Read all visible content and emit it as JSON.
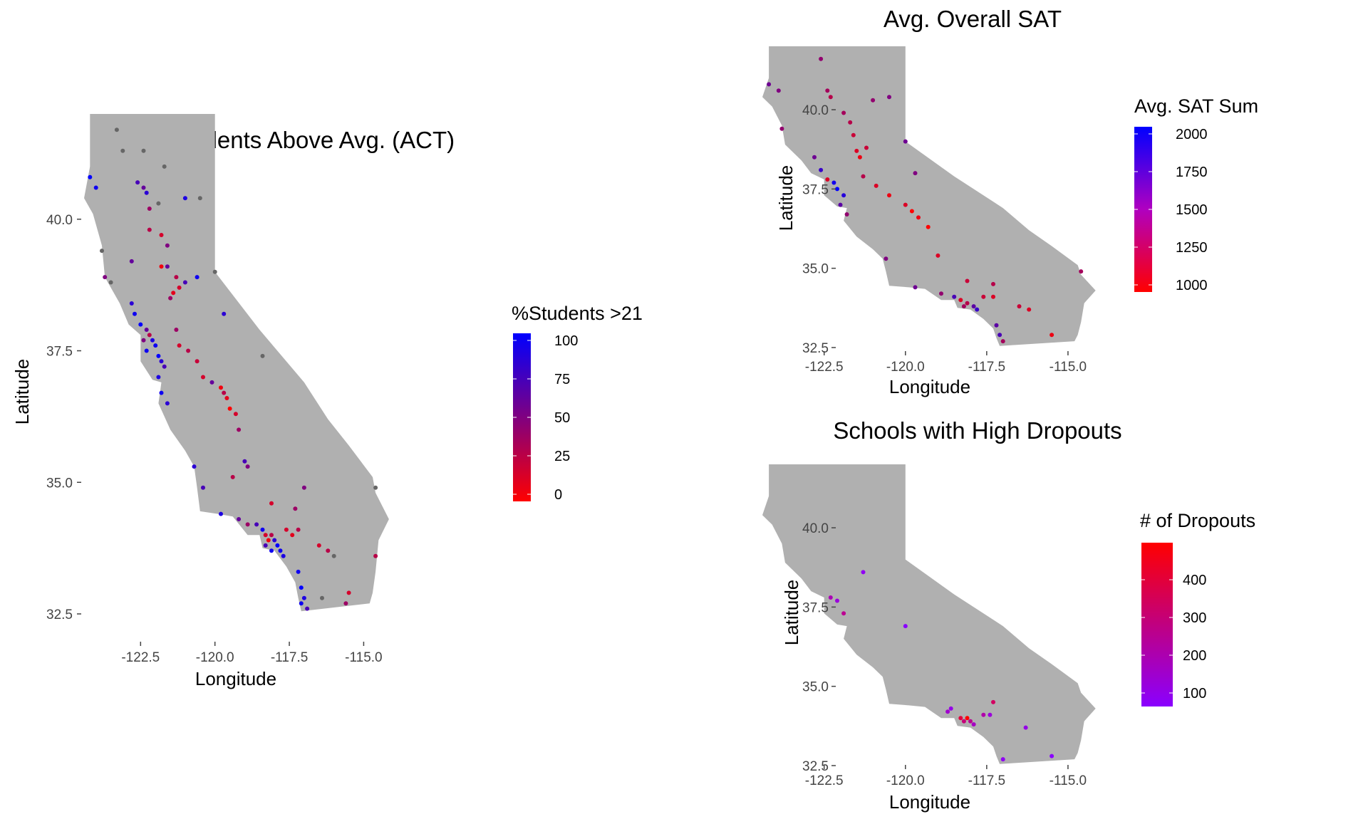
{
  "chart_data": [
    {
      "type": "scatter",
      "title": "% of Students Above Avg. (ACT)",
      "xlabel": "Longitude",
      "ylabel": "Latitude",
      "xlim": [
        -124.4,
        -114.1
      ],
      "ylim": [
        32.5,
        42.0
      ],
      "x_ticks": [
        "-122.5",
        "-120.0",
        "-117.5",
        "-115.0"
      ],
      "y_ticks": [
        "32.5",
        "35.0",
        "37.5",
        "40.0"
      ],
      "legend": {
        "title": "%Students >21",
        "placement": "right",
        "labels": [
          "100",
          "75",
          "50",
          "25",
          "0"
        ],
        "low_color": "#ff0000",
        "high_color": "#0000ff"
      },
      "na_color": "#666666",
      "points": [
        {
          "x": -124.2,
          "y": 40.8,
          "v": 95
        },
        {
          "x": -124.0,
          "y": 40.6,
          "v": 90
        },
        {
          "x": -123.3,
          "y": 41.7,
          "v": null
        },
        {
          "x": -123.1,
          "y": 41.3,
          "v": null
        },
        {
          "x": -122.4,
          "y": 41.3,
          "v": null
        },
        {
          "x": -121.7,
          "y": 41.0,
          "v": null
        },
        {
          "x": -122.6,
          "y": 40.7,
          "v": 70
        },
        {
          "x": -122.4,
          "y": 40.6,
          "v": 60
        },
        {
          "x": -122.3,
          "y": 40.5,
          "v": 80
        },
        {
          "x": -122.2,
          "y": 40.2,
          "v": 40
        },
        {
          "x": -121.9,
          "y": 40.3,
          "v": null
        },
        {
          "x": -121.0,
          "y": 40.4,
          "v": 85
        },
        {
          "x": -122.2,
          "y": 39.8,
          "v": 30
        },
        {
          "x": -121.8,
          "y": 39.7,
          "v": 20
        },
        {
          "x": -121.6,
          "y": 39.5,
          "v": 50
        },
        {
          "x": -121.8,
          "y": 39.1,
          "v": 10
        },
        {
          "x": -121.6,
          "y": 39.1,
          "v": 60
        },
        {
          "x": -121.3,
          "y": 38.9,
          "v": 30
        },
        {
          "x": -121.2,
          "y": 38.7,
          "v": 20
        },
        {
          "x": -121.4,
          "y": 38.6,
          "v": 15
        },
        {
          "x": -121.5,
          "y": 38.5,
          "v": 40
        },
        {
          "x": -121.0,
          "y": 38.8,
          "v": 70
        },
        {
          "x": -120.6,
          "y": 38.9,
          "v": 90
        },
        {
          "x": -123.5,
          "y": 38.8,
          "v": null
        },
        {
          "x": -122.8,
          "y": 38.4,
          "v": 80
        },
        {
          "x": -122.7,
          "y": 38.2,
          "v": 90
        },
        {
          "x": -122.5,
          "y": 38.0,
          "v": 95
        },
        {
          "x": -122.3,
          "y": 37.9,
          "v": 60
        },
        {
          "x": -122.2,
          "y": 37.8,
          "v": 30
        },
        {
          "x": -122.1,
          "y": 37.7,
          "v": 85
        },
        {
          "x": -122.0,
          "y": 37.6,
          "v": 90
        },
        {
          "x": -121.9,
          "y": 37.4,
          "v": 95
        },
        {
          "x": -121.8,
          "y": 37.3,
          "v": 80
        },
        {
          "x": -122.4,
          "y": 37.7,
          "v": 50
        },
        {
          "x": -122.3,
          "y": 37.5,
          "v": 90
        },
        {
          "x": -121.7,
          "y": 37.2,
          "v": 70
        },
        {
          "x": -121.9,
          "y": 37.0,
          "v": 85
        },
        {
          "x": -121.8,
          "y": 36.7,
          "v": 90
        },
        {
          "x": -121.6,
          "y": 36.5,
          "v": 80
        },
        {
          "x": -121.3,
          "y": 37.9,
          "v": 40
        },
        {
          "x": -121.2,
          "y": 37.6,
          "v": 20
        },
        {
          "x": -120.9,
          "y": 37.5,
          "v": 30
        },
        {
          "x": -120.6,
          "y": 37.3,
          "v": 25
        },
        {
          "x": -120.4,
          "y": 37.0,
          "v": 20
        },
        {
          "x": -120.1,
          "y": 36.9,
          "v": 60
        },
        {
          "x": -119.8,
          "y": 36.8,
          "v": 10
        },
        {
          "x": -119.7,
          "y": 36.7,
          "v": 30
        },
        {
          "x": -119.6,
          "y": 36.6,
          "v": 15
        },
        {
          "x": -119.5,
          "y": 36.4,
          "v": 5
        },
        {
          "x": -119.3,
          "y": 36.3,
          "v": 20
        },
        {
          "x": -119.2,
          "y": 36.0,
          "v": 40
        },
        {
          "x": -119.0,
          "y": 35.4,
          "v": 70
        },
        {
          "x": -118.9,
          "y": 35.3,
          "v": 50
        },
        {
          "x": -119.4,
          "y": 35.1,
          "v": 30
        },
        {
          "x": -120.7,
          "y": 35.3,
          "v": 80
        },
        {
          "x": -120.4,
          "y": 34.9,
          "v": 70
        },
        {
          "x": -119.8,
          "y": 34.4,
          "v": 85
        },
        {
          "x": -119.2,
          "y": 34.3,
          "v": 60
        },
        {
          "x": -118.9,
          "y": 34.2,
          "v": 40
        },
        {
          "x": -118.6,
          "y": 34.2,
          "v": 70
        },
        {
          "x": -118.4,
          "y": 34.1,
          "v": 90
        },
        {
          "x": -118.3,
          "y": 34.0,
          "v": 20
        },
        {
          "x": -118.2,
          "y": 33.9,
          "v": 10
        },
        {
          "x": -118.1,
          "y": 34.0,
          "v": 30
        },
        {
          "x": -118.0,
          "y": 33.9,
          "v": 80
        },
        {
          "x": -117.9,
          "y": 33.8,
          "v": 95
        },
        {
          "x": -117.8,
          "y": 33.7,
          "v": 90
        },
        {
          "x": -117.7,
          "y": 33.6,
          "v": 85
        },
        {
          "x": -118.3,
          "y": 33.8,
          "v": 70
        },
        {
          "x": -118.1,
          "y": 33.7,
          "v": 90
        },
        {
          "x": -117.6,
          "y": 34.1,
          "v": 20
        },
        {
          "x": -117.4,
          "y": 34.0,
          "v": 15
        },
        {
          "x": -117.2,
          "y": 34.1,
          "v": 30
        },
        {
          "x": -117.3,
          "y": 34.5,
          "v": 40
        },
        {
          "x": -118.1,
          "y": 34.6,
          "v": 20
        },
        {
          "x": -117.0,
          "y": 34.9,
          "v": 50
        },
        {
          "x": -117.2,
          "y": 33.3,
          "v": 90
        },
        {
          "x": -117.1,
          "y": 33.0,
          "v": 95
        },
        {
          "x": -117.0,
          "y": 32.8,
          "v": 85
        },
        {
          "x": -117.1,
          "y": 32.7,
          "v": 90
        },
        {
          "x": -116.9,
          "y": 32.6,
          "v": 70
        },
        {
          "x": -116.5,
          "y": 33.8,
          "v": 20
        },
        {
          "x": -116.2,
          "y": 33.7,
          "v": 30
        },
        {
          "x": -116.0,
          "y": 33.6,
          "v": null
        },
        {
          "x": -115.5,
          "y": 32.9,
          "v": 20
        },
        {
          "x": -115.6,
          "y": 32.7,
          "v": 40
        },
        {
          "x": -116.4,
          "y": 32.8,
          "v": null
        },
        {
          "x": -114.6,
          "y": 34.9,
          "v": null
        },
        {
          "x": -114.6,
          "y": 33.6,
          "v": 30
        },
        {
          "x": -118.4,
          "y": 37.4,
          "v": null
        },
        {
          "x": -119.7,
          "y": 38.2,
          "v": 80
        },
        {
          "x": -120.0,
          "y": 39.0,
          "v": null
        },
        {
          "x": -123.8,
          "y": 39.4,
          "v": null
        },
        {
          "x": -123.7,
          "y": 38.9,
          "v": 50
        },
        {
          "x": -120.5,
          "y": 40.4,
          "v": null
        },
        {
          "x": -122.8,
          "y": 39.2,
          "v": 60
        }
      ]
    },
    {
      "type": "scatter",
      "title": "Avg. Overall SAT",
      "xlabel": "Longitude",
      "ylabel": "Latitude",
      "xlim": [
        -124.4,
        -114.1
      ],
      "ylim": [
        32.5,
        42.0
      ],
      "x_ticks": [
        "-122.5",
        "-120.0",
        "-117.5",
        "-115.0"
      ],
      "y_ticks": [
        "32.5",
        "35.0",
        "37.5",
        "40.0"
      ],
      "legend": {
        "title": "Avg. SAT Sum",
        "placement": "right",
        "labels": [
          "2000",
          "1750",
          "1500",
          "1250",
          "1000"
        ],
        "low_color": "#ff0000",
        "high_color": "#0000ff"
      },
      "points": [
        {
          "x": -124.2,
          "y": 40.8,
          "v": 1600
        },
        {
          "x": -123.9,
          "y": 40.6,
          "v": 1550
        },
        {
          "x": -122.6,
          "y": 41.6,
          "v": 1500
        },
        {
          "x": -122.4,
          "y": 40.6,
          "v": 1450
        },
        {
          "x": -122.3,
          "y": 40.4,
          "v": 1400
        },
        {
          "x": -121.9,
          "y": 39.9,
          "v": 1450
        },
        {
          "x": -121.7,
          "y": 39.6,
          "v": 1400
        },
        {
          "x": -121.6,
          "y": 39.2,
          "v": 1350
        },
        {
          "x": -121.5,
          "y": 38.7,
          "v": 1300
        },
        {
          "x": -121.4,
          "y": 38.5,
          "v": 1250
        },
        {
          "x": -121.2,
          "y": 38.8,
          "v": 1350
        },
        {
          "x": -122.8,
          "y": 38.5,
          "v": 1600
        },
        {
          "x": -122.6,
          "y": 38.1,
          "v": 1750
        },
        {
          "x": -122.4,
          "y": 37.8,
          "v": 1300
        },
        {
          "x": -122.2,
          "y": 37.7,
          "v": 1850
        },
        {
          "x": -122.1,
          "y": 37.5,
          "v": 1900
        },
        {
          "x": -121.9,
          "y": 37.3,
          "v": 1800
        },
        {
          "x": -122.0,
          "y": 37.0,
          "v": 1650
        },
        {
          "x": -121.8,
          "y": 36.7,
          "v": 1500
        },
        {
          "x": -121.3,
          "y": 37.9,
          "v": 1400
        },
        {
          "x": -120.9,
          "y": 37.6,
          "v": 1300
        },
        {
          "x": -120.5,
          "y": 37.3,
          "v": 1250
        },
        {
          "x": -120.0,
          "y": 37.0,
          "v": 1300
        },
        {
          "x": -119.8,
          "y": 36.8,
          "v": 1200
        },
        {
          "x": -119.6,
          "y": 36.6,
          "v": 1250
        },
        {
          "x": -119.3,
          "y": 36.3,
          "v": 1200
        },
        {
          "x": -119.0,
          "y": 35.4,
          "v": 1300
        },
        {
          "x": -120.6,
          "y": 35.3,
          "v": 1550
        },
        {
          "x": -119.7,
          "y": 34.4,
          "v": 1600
        },
        {
          "x": -118.9,
          "y": 34.2,
          "v": 1500
        },
        {
          "x": -118.5,
          "y": 34.1,
          "v": 1700
        },
        {
          "x": -118.3,
          "y": 34.0,
          "v": 1300
        },
        {
          "x": -118.1,
          "y": 33.9,
          "v": 1400
        },
        {
          "x": -117.9,
          "y": 33.8,
          "v": 1650
        },
        {
          "x": -117.8,
          "y": 33.7,
          "v": 1750
        },
        {
          "x": -118.2,
          "y": 33.8,
          "v": 1450
        },
        {
          "x": -117.6,
          "y": 34.1,
          "v": 1350
        },
        {
          "x": -117.3,
          "y": 34.1,
          "v": 1300
        },
        {
          "x": -117.3,
          "y": 34.5,
          "v": 1400
        },
        {
          "x": -118.1,
          "y": 34.6,
          "v": 1350
        },
        {
          "x": -117.2,
          "y": 33.2,
          "v": 1650
        },
        {
          "x": -117.1,
          "y": 32.9,
          "v": 1700
        },
        {
          "x": -117.0,
          "y": 32.7,
          "v": 1450
        },
        {
          "x": -116.5,
          "y": 33.8,
          "v": 1350
        },
        {
          "x": -116.2,
          "y": 33.7,
          "v": 1300
        },
        {
          "x": -115.5,
          "y": 32.9,
          "v": 1250
        },
        {
          "x": -114.6,
          "y": 34.9,
          "v": 1450
        },
        {
          "x": -120.0,
          "y": 39.0,
          "v": 1600
        },
        {
          "x": -123.8,
          "y": 39.4,
          "v": 1500
        },
        {
          "x": -120.5,
          "y": 40.4,
          "v": 1550
        },
        {
          "x": -121.0,
          "y": 40.3,
          "v": 1500
        },
        {
          "x": -119.7,
          "y": 38.0,
          "v": 1550
        }
      ]
    },
    {
      "type": "scatter",
      "title": "Schools with High Dropouts",
      "xlabel": "Longitude",
      "ylabel": "Latitude",
      "xlim": [
        -124.4,
        -114.1
      ],
      "ylim": [
        32.5,
        42.0
      ],
      "x_ticks": [
        "-122.5",
        "-120.0",
        "-117.5",
        "-115.0"
      ],
      "y_ticks": [
        "32.5",
        "35.0",
        "37.5",
        "40.0"
      ],
      "legend": {
        "title": "# of Dropouts",
        "placement": "right",
        "labels": [
          "400",
          "300",
          "200",
          "100"
        ],
        "low_color": "#8a00ff",
        "high_color": "#ff0000"
      },
      "points": [
        {
          "x": -122.3,
          "y": 37.8,
          "v": 150
        },
        {
          "x": -122.1,
          "y": 37.7,
          "v": 120
        },
        {
          "x": -121.9,
          "y": 37.3,
          "v": 180
        },
        {
          "x": -121.3,
          "y": 38.6,
          "v": 100
        },
        {
          "x": -120.0,
          "y": 36.9,
          "v": 90
        },
        {
          "x": -118.6,
          "y": 34.3,
          "v": 110
        },
        {
          "x": -118.3,
          "y": 34.0,
          "v": 250
        },
        {
          "x": -118.2,
          "y": 33.9,
          "v": 200
        },
        {
          "x": -118.1,
          "y": 34.0,
          "v": 300
        },
        {
          "x": -118.0,
          "y": 33.9,
          "v": 180
        },
        {
          "x": -117.9,
          "y": 33.8,
          "v": 140
        },
        {
          "x": -117.6,
          "y": 34.1,
          "v": 160
        },
        {
          "x": -117.4,
          "y": 34.1,
          "v": 120
        },
        {
          "x": -117.3,
          "y": 34.5,
          "v": 220
        },
        {
          "x": -117.0,
          "y": 32.7,
          "v": 100
        },
        {
          "x": -115.5,
          "y": 32.8,
          "v": 90
        },
        {
          "x": -118.7,
          "y": 34.2,
          "v": 130
        },
        {
          "x": -116.3,
          "y": 33.7,
          "v": 110
        }
      ]
    }
  ]
}
